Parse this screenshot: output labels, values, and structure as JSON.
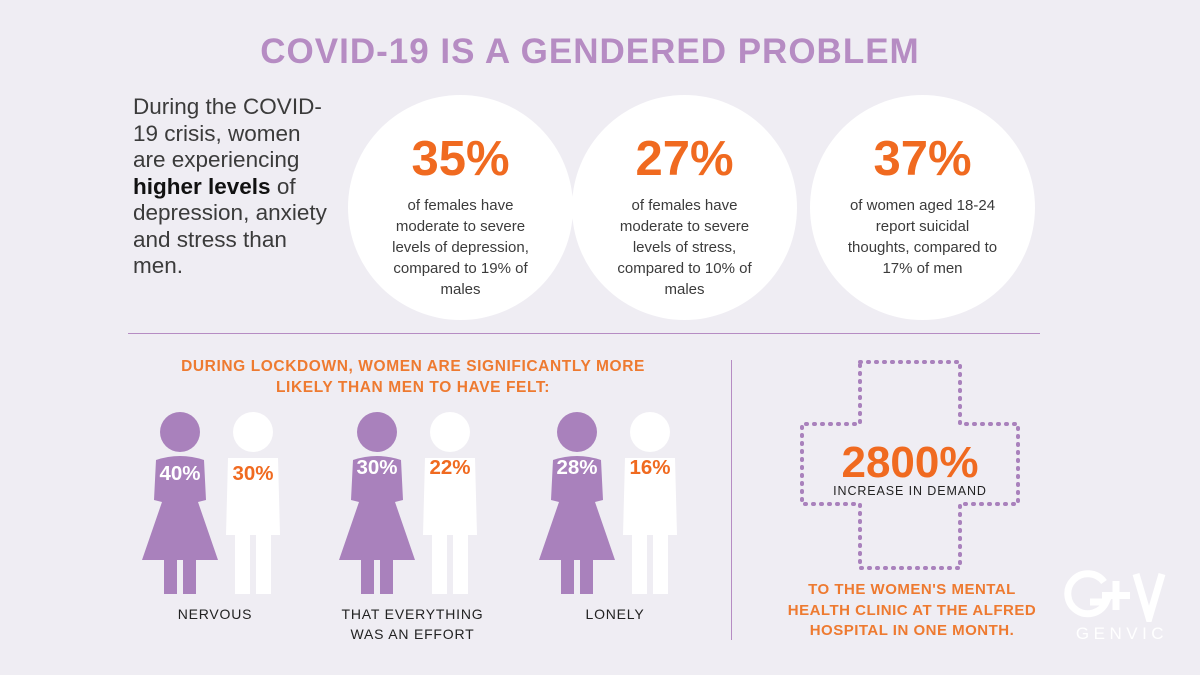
{
  "title": "COVID-19 IS A GENDERED PROBLEM",
  "intro": {
    "before": "During the COVID-19 crisis, women are experiencing ",
    "bold": "higher levels",
    "after": " of depression, anxiety and stress than men."
  },
  "stats": [
    {
      "value": "35%",
      "text": "of females have moderate to severe levels of depression, compared to 19% of males"
    },
    {
      "value": "27%",
      "text": "of females have moderate to severe levels of stress, compared to 10% of males"
    },
    {
      "value": "37%",
      "text": "of women aged 18-24 report suicidal thoughts, compared to 17% of men"
    }
  ],
  "lockdown": {
    "heading": "DURING LOCKDOWN, WOMEN ARE SIGNIFICANTLY MORE LIKELY THAN MEN TO HAVE FELT:",
    "groups": [
      {
        "women": "40%",
        "men": "30%",
        "caption": "NERVOUS"
      },
      {
        "women": "30%",
        "men": "22%",
        "caption": "THAT EVERYTHING WAS AN EFFORT"
      },
      {
        "women": "28%",
        "men": "16%",
        "caption": "LONELY"
      }
    ]
  },
  "demand": {
    "value": "2800%",
    "label": "INCREASE IN DEMAND",
    "footnote": "TO THE WOMEN'S MENTAL HEALTH CLINIC AT THE ALFRED HOSPITAL IN ONE MONTH."
  },
  "logo": {
    "mark": "G+V",
    "name": "GENVIC"
  },
  "colors": {
    "purple": "#b68cc3",
    "figure_women": "#a981bc",
    "orange": "#f06a20",
    "background": "#efedf3"
  }
}
